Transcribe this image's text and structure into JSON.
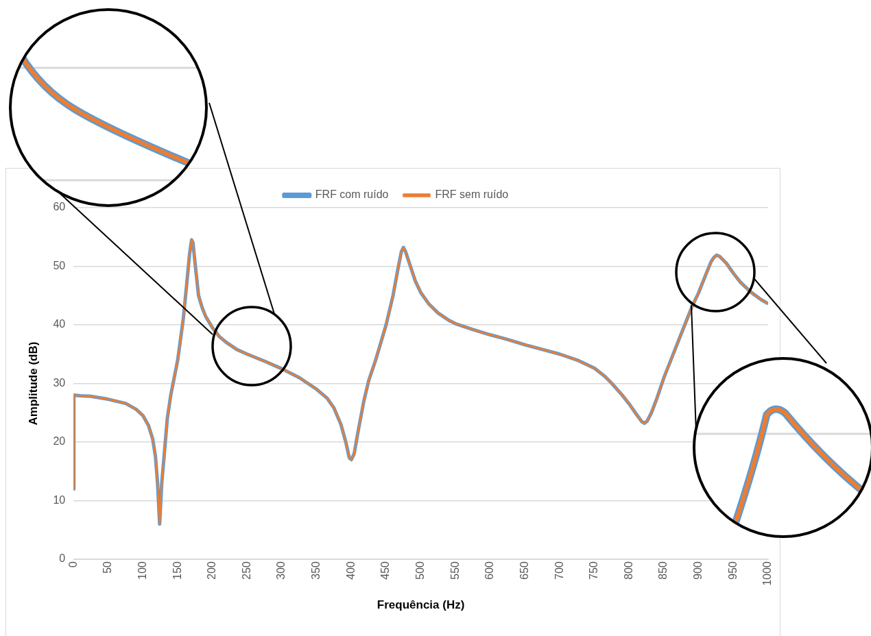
{
  "chart_data": {
    "type": "line",
    "xlabel": "Frequência (Hz)",
    "ylabel": "Amplitude (dB)",
    "x": [
      0,
      0.5,
      10,
      25,
      50,
      75,
      90,
      100,
      108,
      114,
      118,
      121,
      124,
      127,
      130,
      135,
      140,
      150,
      158,
      163,
      167,
      170,
      172,
      175,
      180,
      185,
      190,
      200,
      210,
      220,
      235,
      250,
      275,
      300,
      325,
      350,
      365,
      375,
      385,
      392,
      397,
      400,
      404,
      410,
      418,
      425,
      435,
      450,
      460,
      467,
      472,
      475,
      478,
      485,
      492,
      500,
      512,
      525,
      540,
      550,
      575,
      600,
      625,
      650,
      675,
      700,
      725,
      750,
      765,
      775,
      790,
      800,
      810,
      818,
      822,
      826,
      832,
      840,
      850,
      860,
      870,
      880,
      890,
      900,
      910,
      918,
      922,
      926,
      930,
      940,
      950,
      960,
      975,
      990,
      1000
    ],
    "series": [
      {
        "name": "FRF com ruído",
        "color": "#5b9bd5",
        "values": [
          12,
          28,
          27.9,
          27.8,
          27.3,
          26.6,
          25.6,
          24.5,
          22.8,
          20.5,
          17.5,
          13,
          6,
          13,
          17,
          24,
          28,
          34,
          41,
          47,
          52,
          54.5,
          54,
          50.5,
          45,
          43,
          41.5,
          39.5,
          38,
          37,
          35.8,
          35,
          33.8,
          32.5,
          31,
          29,
          27.5,
          25.8,
          23,
          20,
          17.3,
          17,
          18,
          22,
          27,
          30.5,
          34,
          40,
          45,
          49.5,
          52.5,
          53.2,
          52.5,
          50,
          47.5,
          45.5,
          43.5,
          42,
          40.8,
          40.2,
          39.2,
          38.3,
          37.5,
          36.6,
          35.8,
          35,
          34,
          32.6,
          31.2,
          30,
          28,
          26.5,
          24.8,
          23.5,
          23.2,
          23.6,
          25,
          27.5,
          31,
          34,
          37,
          40,
          43,
          45.5,
          48.5,
          50.8,
          51.5,
          51.9,
          51.7,
          50.5,
          48.8,
          47.3,
          45.6,
          44.3,
          43.6
        ]
      },
      {
        "name": "FRF sem ruído",
        "color": "#ed7d31",
        "values": [
          12,
          28,
          27.9,
          27.8,
          27.3,
          26.6,
          25.6,
          24.5,
          22.8,
          20.5,
          17.5,
          13,
          6,
          13,
          17,
          24,
          28,
          34,
          41,
          47,
          52,
          54.5,
          54,
          50.5,
          45,
          43,
          41.5,
          39.5,
          38,
          37,
          35.8,
          35,
          33.8,
          32.5,
          31,
          29,
          27.5,
          25.8,
          23,
          20,
          17.3,
          17,
          18,
          22,
          27,
          30.5,
          34,
          40,
          45,
          49.5,
          52.5,
          53.2,
          52.5,
          50,
          47.5,
          45.5,
          43.5,
          42,
          40.8,
          40.2,
          39.2,
          38.3,
          37.5,
          36.6,
          35.8,
          35,
          34,
          32.6,
          31.2,
          30,
          28,
          26.5,
          24.8,
          23.5,
          23.2,
          23.6,
          25,
          27.5,
          31,
          34,
          37,
          40,
          43,
          45.5,
          48.5,
          50.8,
          51.5,
          51.9,
          51.7,
          50.5,
          48.8,
          47.3,
          45.6,
          44.3,
          43.6
        ]
      }
    ],
    "xlim": [
      0,
      1000
    ],
    "xticks": [
      0,
      50,
      100,
      150,
      200,
      250,
      300,
      350,
      400,
      450,
      500,
      550,
      600,
      650,
      700,
      750,
      800,
      850,
      900,
      950,
      1000
    ],
    "ylim": [
      0,
      60
    ],
    "yticks": [
      0,
      10,
      20,
      30,
      40,
      50,
      60
    ],
    "grid": "y",
    "legend": "top",
    "marker": "none",
    "line_style": "solid"
  }
}
